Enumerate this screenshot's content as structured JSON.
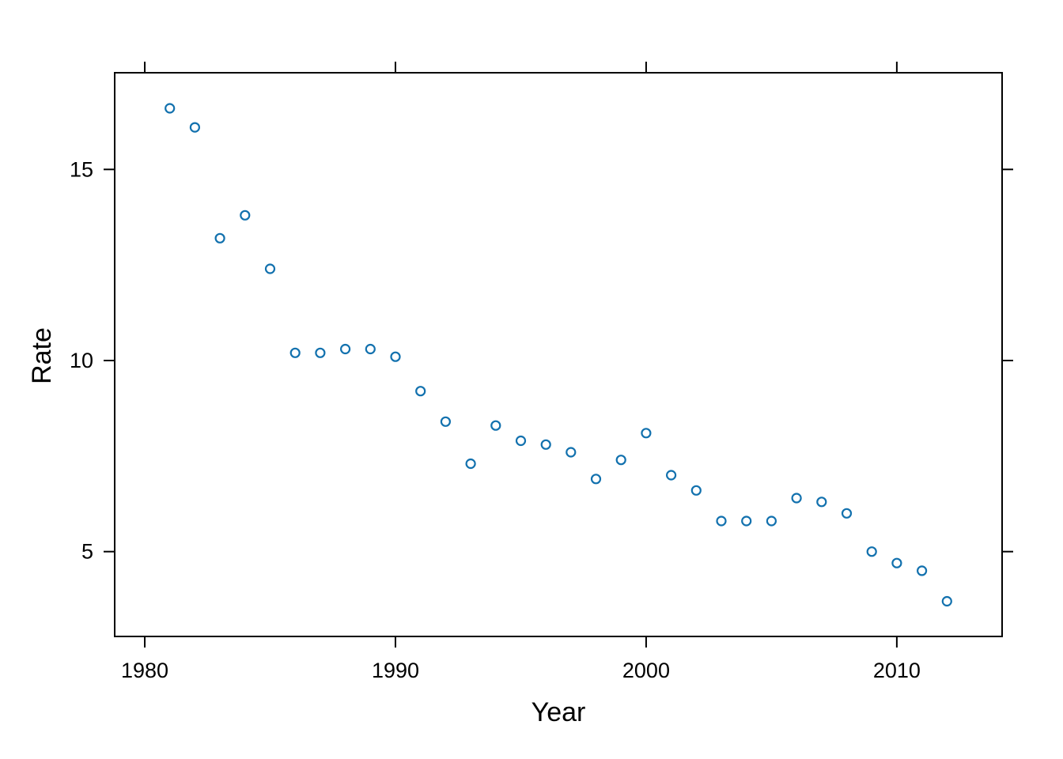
{
  "chart_data": {
    "type": "scatter",
    "title": "",
    "xlabel": "Year",
    "ylabel": "Rate",
    "x": [
      1981,
      1982,
      1983,
      1984,
      1985,
      1986,
      1987,
      1988,
      1989,
      1990,
      1991,
      1992,
      1993,
      1994,
      1995,
      1996,
      1997,
      1998,
      1999,
      2000,
      2001,
      2002,
      2003,
      2004,
      2005,
      2006,
      2007,
      2008,
      2009,
      2010,
      2011,
      2012
    ],
    "y": [
      16.6,
      16.1,
      13.2,
      13.8,
      12.4,
      10.2,
      10.2,
      10.3,
      10.3,
      10.1,
      9.2,
      8.4,
      7.3,
      8.3,
      7.9,
      7.8,
      7.6,
      6.9,
      7.4,
      8.1,
      7.0,
      6.6,
      5.8,
      5.8,
      5.8,
      6.4,
      6.3,
      6.0,
      5.0,
      4.7,
      4.5,
      3.7
    ],
    "x_ticks": [
      1980,
      1990,
      2000,
      2010
    ],
    "y_ticks": [
      5,
      10,
      15
    ],
    "xlim": [
      1978.8,
      2014.2
    ],
    "ylim": [
      2.78,
      17.53
    ],
    "grid": false,
    "legend_position": "none",
    "marker": "open-circle",
    "point_color": "#1271ae",
    "axis_color": "#000000",
    "background_color": "#ffffff"
  }
}
